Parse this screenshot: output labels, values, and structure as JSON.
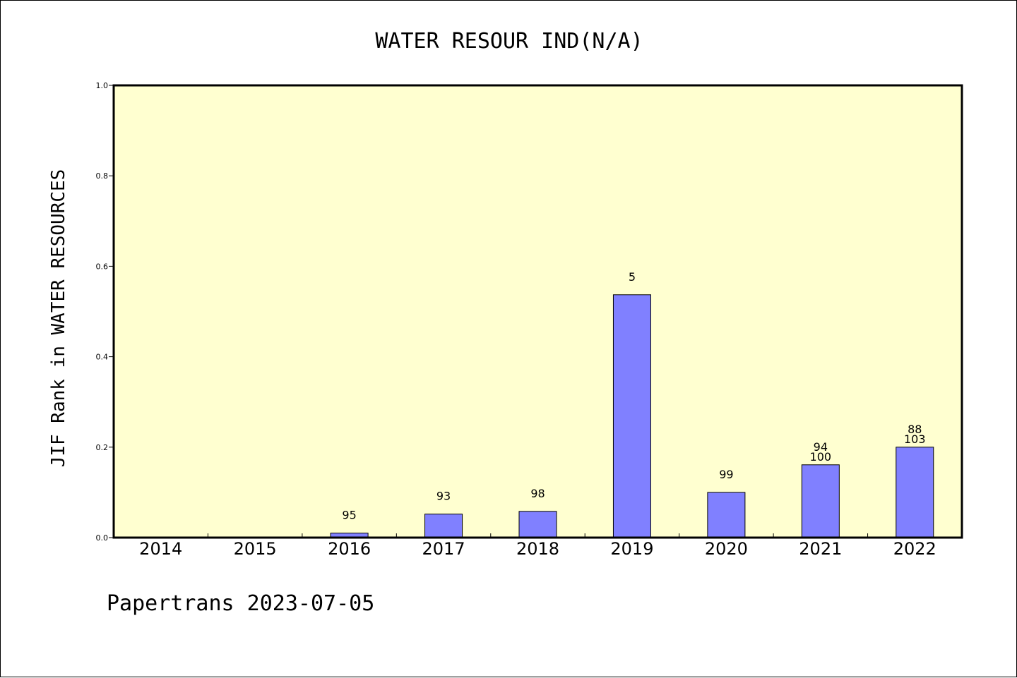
{
  "chart_data": {
    "type": "bar",
    "title": "WATER RESOUR IND(N/A)",
    "xlabel": "",
    "ylabel": "JIF Rank in WATER RESOURCES",
    "categories": [
      "2014",
      "2015",
      "2016",
      "2017",
      "2018",
      "2019",
      "2020",
      "2021",
      "2022"
    ],
    "values": [
      0,
      0,
      0.01,
      0.052,
      0.058,
      0.537,
      0.1,
      0.161,
      0.2
    ],
    "data_labels": [
      [],
      [],
      [
        "95"
      ],
      [
        "93"
      ],
      [
        "98"
      ],
      [
        "5"
      ],
      [
        "99"
      ],
      [
        "94",
        "100"
      ],
      [
        "88",
        "103"
      ]
    ],
    "ylim": [
      0,
      1
    ],
    "yticks": [
      "0.0",
      "0.2",
      "0.4",
      "0.6",
      "0.8",
      "1.0"
    ],
    "grid": false,
    "legend": "none",
    "colors": {
      "plot_background": "#ffffd0",
      "bar_fill": "#8080ff",
      "bar_stroke": "#000000"
    }
  },
  "footer": "Papertrans 2023-07-05"
}
